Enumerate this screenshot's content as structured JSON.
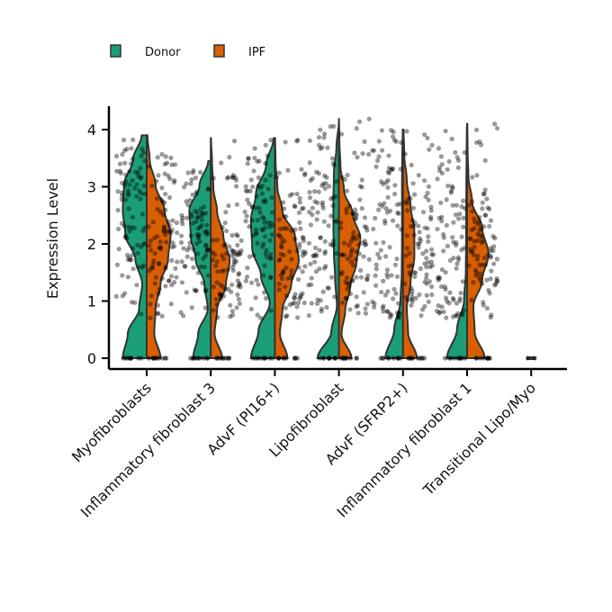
{
  "chart_data": {
    "type": "violin",
    "title": "",
    "xlabel": "",
    "ylabel": "Expression Level",
    "ylim": [
      -0.2,
      4.4
    ],
    "yticks": [
      0,
      1,
      2,
      3,
      4
    ],
    "grid": false,
    "legend_position": "top-left",
    "categories": [
      "Myofibroblasts",
      "Inflammatory fibroblast 3",
      "AdvF (PI16+)",
      "Lipofibroblast",
      "AdvF (SFRP2+)",
      "Inflammatory fibroblast 1",
      "Transitional Lipo/Myo"
    ],
    "series": [
      {
        "name": "Donor",
        "color": "#1b9e77",
        "max": [
          3.9,
          3.45,
          3.85,
          4.15,
          4.0,
          4.05,
          0.0
        ],
        "width_profile": [
          [
            0.95,
            0.75,
            0.3,
            0.18,
            0.45,
            0.85,
            0.95,
            0.9,
            0.55,
            0.2
          ],
          [
            0.7,
            0.5,
            0.12,
            0.25,
            0.6,
            0.8,
            0.85,
            0.45,
            0.1
          ],
          [
            0.95,
            0.65,
            0.2,
            0.55,
            0.9,
            0.95,
            0.75,
            0.35,
            0.05
          ],
          [
            0.85,
            0.3,
            0.08,
            0.15,
            0.2,
            0.22,
            0.22,
            0.2,
            0.1,
            0.0
          ],
          [
            0.7,
            0.35,
            0.1,
            0.05,
            0.04,
            0.04,
            0.04,
            0.03,
            0.01
          ],
          [
            0.8,
            0.4,
            0.12,
            0.05,
            0.04,
            0.04,
            0.03,
            0.02,
            0.01
          ],
          [
            0.3,
            0.0
          ]
        ]
      },
      {
        "name": "IPF",
        "color": "#d95f02",
        "max": [
          3.9,
          3.85,
          3.85,
          4.2,
          4.0,
          4.1,
          0.0
        ],
        "width_profile": [
          [
            0.55,
            0.3,
            0.35,
            0.55,
            0.85,
            0.95,
            0.7,
            0.35,
            0.12,
            0.03
          ],
          [
            0.45,
            0.15,
            0.25,
            0.6,
            0.75,
            0.5,
            0.25,
            0.1,
            0.05,
            0.01
          ],
          [
            0.5,
            0.2,
            0.3,
            0.65,
            0.95,
            0.8,
            0.3,
            0.1,
            0.03,
            0.01
          ],
          [
            0.5,
            0.1,
            0.25,
            0.45,
            0.7,
            0.85,
            0.55,
            0.2,
            0.06,
            0.02,
            0.0
          ],
          [
            0.55,
            0.2,
            0.15,
            0.3,
            0.45,
            0.45,
            0.3,
            0.15,
            0.05,
            0.02
          ],
          [
            0.7,
            0.3,
            0.25,
            0.6,
            0.85,
            0.6,
            0.2,
            0.05,
            0.02,
            0.01
          ],
          [
            0.25,
            0.0
          ]
        ]
      }
    ],
    "legend": [
      {
        "label": "Donor",
        "color": "#1b9e77"
      },
      {
        "label": "IPF",
        "color": "#d95f02"
      }
    ]
  }
}
